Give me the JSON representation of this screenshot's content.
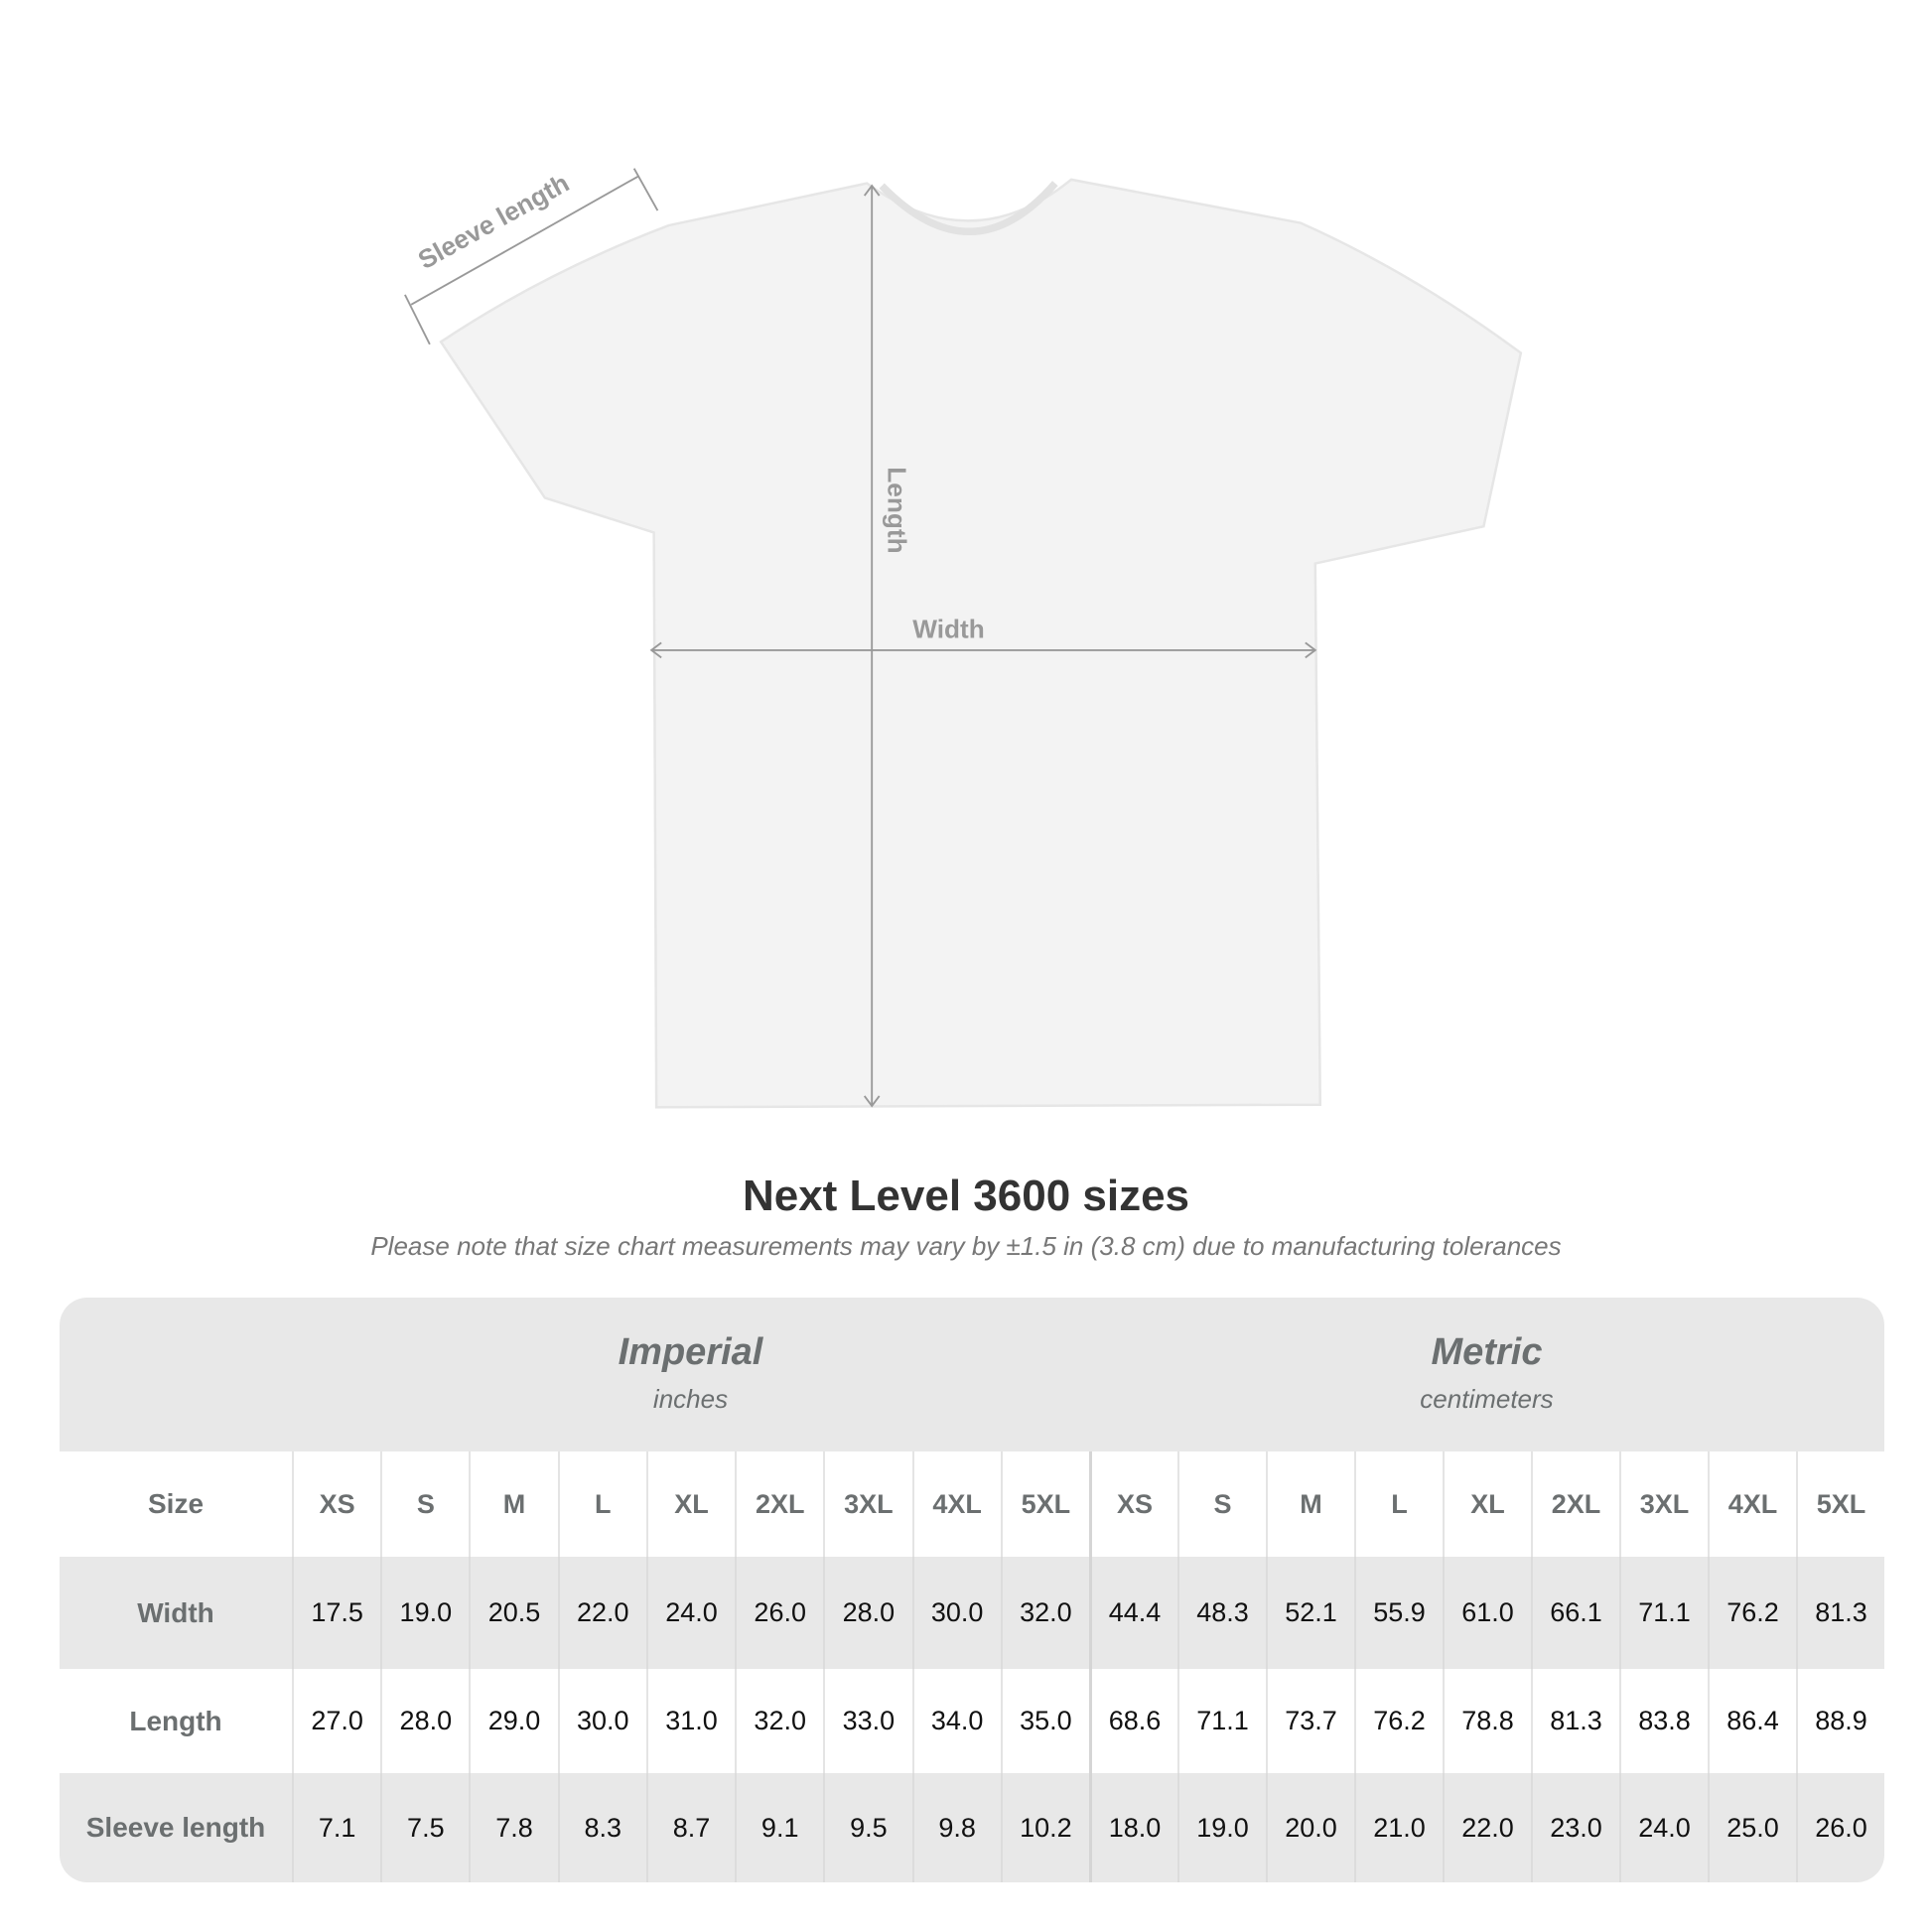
{
  "diagram": {
    "sleeve_label": "Sleeve length",
    "length_label": "Length",
    "width_label": "Width"
  },
  "title": "Next Level 3600 sizes",
  "note": "Please note that size chart measurements may vary by ±1.5 in (3.8 cm) due to manufacturing tolerances",
  "imperial": {
    "name": "Imperial",
    "unit": "inches"
  },
  "metric": {
    "name": "Metric",
    "unit": "centimeters"
  },
  "row_labels": [
    "Size",
    "Width",
    "Length",
    "Sleeve length"
  ],
  "sizes": [
    "XS",
    "S",
    "M",
    "L",
    "XL",
    "2XL",
    "3XL",
    "4XL",
    "5XL"
  ],
  "imperial_rows": {
    "width": [
      "17.5",
      "19.0",
      "20.5",
      "22.0",
      "24.0",
      "26.0",
      "28.0",
      "30.0",
      "32.0"
    ],
    "length": [
      "27.0",
      "28.0",
      "29.0",
      "30.0",
      "31.0",
      "32.0",
      "33.0",
      "34.0",
      "35.0"
    ],
    "sleeve": [
      "7.1",
      "7.5",
      "7.8",
      "8.3",
      "8.7",
      "9.1",
      "9.5",
      "9.8",
      "10.2"
    ]
  },
  "metric_rows": {
    "width": [
      "44.4",
      "48.3",
      "52.1",
      "55.9",
      "61.0",
      "66.1",
      "71.1",
      "76.2",
      "81.3"
    ],
    "length": [
      "68.6",
      "71.1",
      "73.7",
      "76.2",
      "78.8",
      "81.3",
      "83.8",
      "86.4",
      "88.9"
    ],
    "sleeve": [
      "18.0",
      "19.0",
      "20.0",
      "21.0",
      "22.0",
      "23.0",
      "24.0",
      "25.0",
      "26.0"
    ]
  },
  "colors": {
    "table_bg": "#e8e8e8",
    "header_text": "#6b6f70",
    "annotation": "#999999"
  }
}
